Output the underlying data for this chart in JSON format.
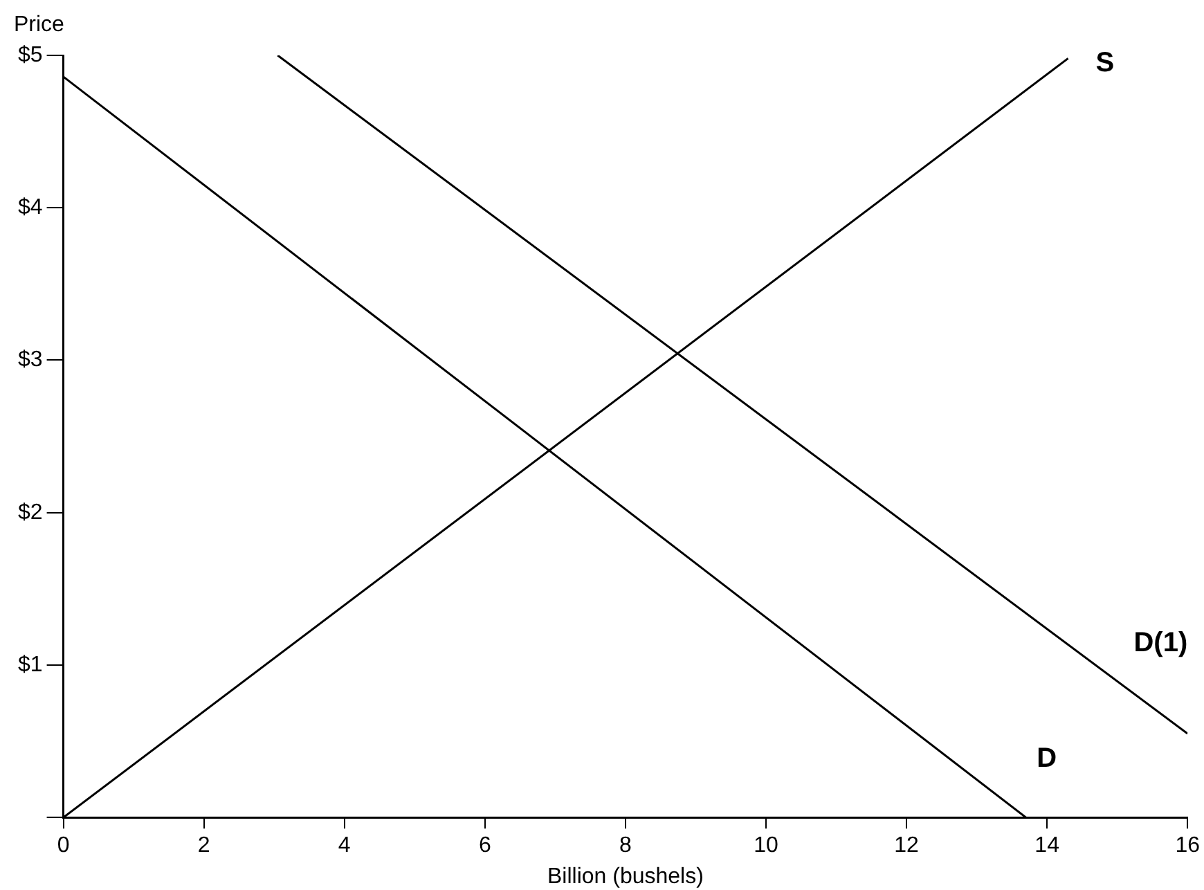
{
  "chart_data": {
    "type": "line",
    "ylabel": "Price",
    "xlabel": "Billion (bushels)",
    "xlim": [
      0,
      16
    ],
    "xticks": [
      0,
      2,
      4,
      6,
      8,
      10,
      12,
      14,
      16
    ],
    "ylim": [
      0,
      5
    ],
    "yticks": [
      {
        "value": 0,
        "label": null
      },
      {
        "value": 1,
        "label": "$1"
      },
      {
        "value": 2,
        "label": "$2"
      },
      {
        "value": 3,
        "label": "$3"
      },
      {
        "value": 4,
        "label": "$4"
      },
      {
        "value": 5,
        "label": "$5"
      }
    ],
    "grid": false,
    "legend": false,
    "marker": "none",
    "line_style": "solid",
    "series": [
      {
        "name": "S",
        "color": "#000000",
        "x": [
          0,
          14.3
        ],
        "values": [
          0,
          4.98
        ]
      },
      {
        "name": "D(1)",
        "color": "#000000",
        "x": [
          3.05,
          16
        ],
        "values": [
          5,
          0.55
        ]
      },
      {
        "name": "D",
        "color": "#000000",
        "x": [
          0,
          13.7
        ],
        "values": [
          4.86,
          0
        ]
      }
    ]
  }
}
